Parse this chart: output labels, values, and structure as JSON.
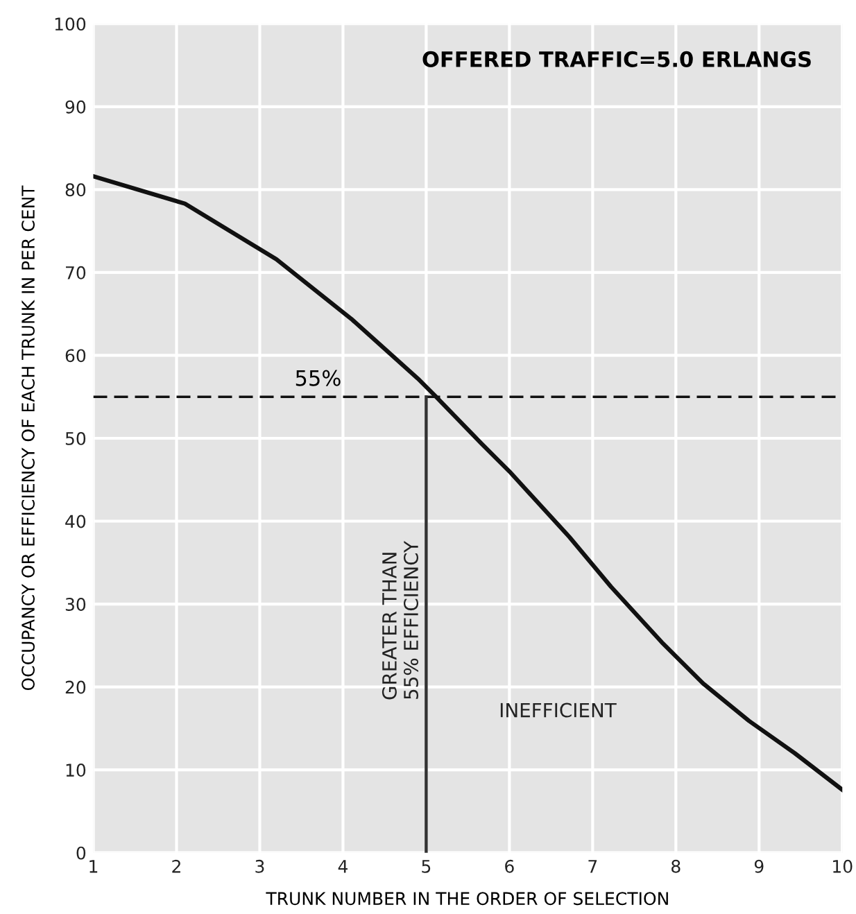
{
  "chart_data": {
    "type": "line",
    "title": "OFFERED TRAFFIC=5.0 ERLANGS",
    "xlabel": "TRUNK NUMBER IN THE ORDER OF SELECTION",
    "ylabel": "OCCUPANCY OR EFFICIENCY OF EACH TRUNK IN PER CENT",
    "x": [
      1,
      2.1,
      3.2,
      4.1,
      4.9,
      5.1,
      5.67,
      6.0,
      6.72,
      7.22,
      7.83,
      8.33,
      8.88,
      9.43,
      10
    ],
    "series": [
      {
        "color": "#111111",
        "values": [
          81.6,
          78.3,
          71.6,
          64.4,
          57.2,
          55.2,
          49.3,
          46,
          38.1,
          32.1,
          25.4,
          20.4,
          15.9,
          12.0,
          7.6
        ]
      }
    ],
    "xlim": [
      1,
      10
    ],
    "xticks": [
      1,
      2,
      3,
      4,
      5,
      6,
      7,
      8,
      9,
      10
    ],
    "ylim": [
      0,
      100
    ],
    "yticks": [
      0,
      10,
      20,
      30,
      40,
      50,
      60,
      70,
      80,
      90,
      100
    ],
    "grid": true,
    "marker": "none",
    "line_style": "solid",
    "legend": false,
    "ref_lines": [
      {
        "axis": "y",
        "value": 55,
        "label": "55%",
        "color": "#111111",
        "line_style": "dashed"
      },
      {
        "axis": "x",
        "value": 5,
        "label": "GREATER THAN\n55% EFFICIENCY",
        "color": "#333333",
        "line_style": "solid"
      }
    ],
    "annotations": [
      "INEFFICIENT"
    ]
  }
}
